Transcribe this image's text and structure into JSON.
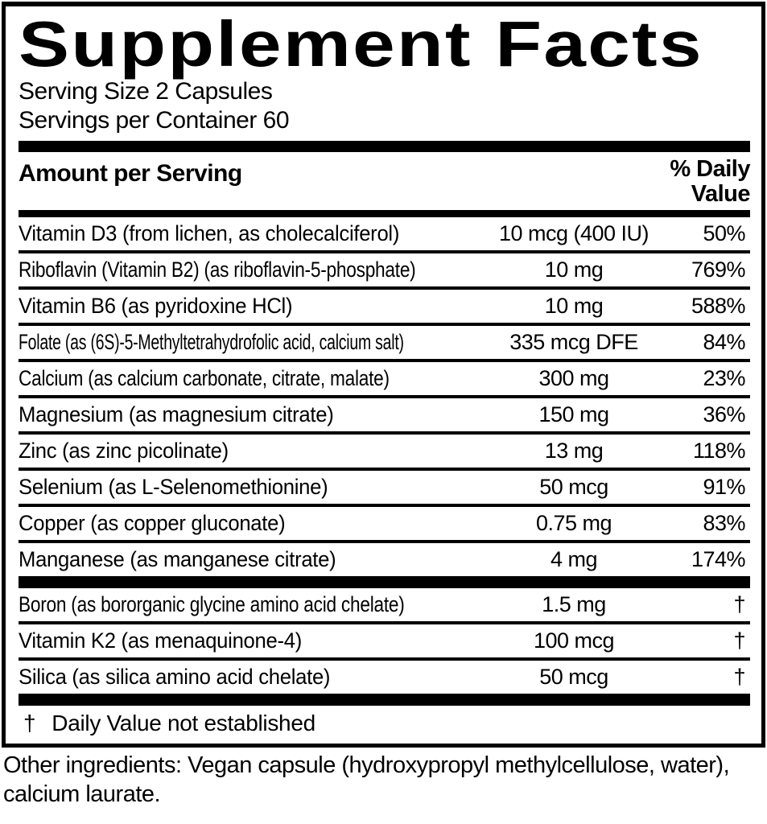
{
  "colors": {
    "ink": "#000000",
    "background": "#ffffff"
  },
  "label": {
    "title": "Supplement Facts",
    "serving_size": "Serving Size 2 Capsules",
    "servings_per_container": "Servings per Container 60",
    "header": {
      "amount_col": "Amount per Serving",
      "dv_col": "% Daily Value"
    },
    "rows": [
      {
        "name": "Vitamin D3 (from lichen, as cholecalciferol)",
        "amount": "10 mcg (400 IU)",
        "dv": "50%"
      },
      {
        "name": "Riboflavin (Vitamin B2) (as riboflavin-5-phosphate)",
        "amount": "10 mg",
        "dv": "769%"
      },
      {
        "name": "Vitamin B6 (as pyridoxine HCl)",
        "amount": "10 mg",
        "dv": "588%"
      },
      {
        "name": "Folate (as (6S)-5-Methyltetrahydrofolic acid, calcium salt)",
        "amount": "335 mcg DFE",
        "dv": "84%"
      },
      {
        "name": "Calcium (as calcium carbonate, citrate, malate)",
        "amount": "300 mg",
        "dv": "23%"
      },
      {
        "name": "Magnesium (as magnesium citrate)",
        "amount": "150 mg",
        "dv": "36%"
      },
      {
        "name": "Zinc (as zinc picolinate)",
        "amount": "13 mg",
        "dv": "118%"
      },
      {
        "name": "Selenium (as L-Selenomethionine)",
        "amount": "50 mcg",
        "dv": "91%"
      },
      {
        "name": "Copper (as copper gluconate)",
        "amount": "0.75 mg",
        "dv": "83%"
      },
      {
        "name": "Manganese (as manganese citrate)",
        "amount": "4 mg",
        "dv": "174%"
      }
    ],
    "rows_no_dv": [
      {
        "name": "Boron (as bororganic glycine amino acid chelate)",
        "amount": "1.5 mg",
        "dv": "†"
      },
      {
        "name": "Vitamin K2 (as menaquinone-4)",
        "amount": "100 mcg",
        "dv": "†"
      },
      {
        "name": "Silica (as silica amino acid chelate)",
        "amount": "50 mcg",
        "dv": "†"
      }
    ],
    "footnote_marker": "†",
    "footnote_text": "Daily Value not established",
    "other_ingredients": "Other ingredients: Vegan capsule (hydroxypropyl methylcellulose, water), calcium laurate."
  }
}
